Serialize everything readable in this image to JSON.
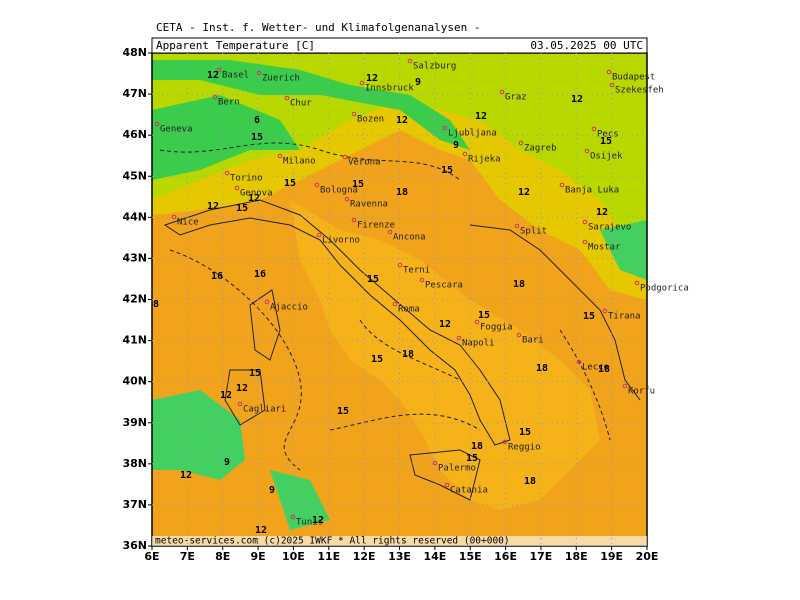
{
  "header": "CETA - Inst. f. Wetter- und Klimafolgenanalysen -",
  "panel": {
    "title": "Apparent Temperature [C]",
    "date": "03.05.2025 00 UTC"
  },
  "footer": "meteo-services.com   (c)2025 IWKF * All rights reserved (00+000)",
  "axes": {
    "lon_labels": [
      "6E",
      "7E",
      "8E",
      "9E",
      "10E",
      "11E",
      "12E",
      "13E",
      "14E",
      "15E",
      "16E",
      "17E",
      "18E",
      "19E",
      "20E"
    ],
    "lat_labels": [
      "48N",
      "47N",
      "46N",
      "45N",
      "44N",
      "43N",
      "42N",
      "41N",
      "40N",
      "39N",
      "38N",
      "37N",
      "36N"
    ]
  },
  "cities": [
    "Basel",
    "Zuerich",
    "Innsbruck",
    "Salzburg",
    "Graz",
    "Budapest",
    "Szekesfeh",
    "Bern",
    "Chur",
    "Bozen",
    "Ljubljana",
    "Zagreb",
    "Pecs",
    "Geneva",
    "Milano",
    "Verona",
    "Rijeka",
    "Osijek",
    "Torino",
    "Bologna",
    "Banja Luka",
    "Genova",
    "Ravenna",
    "Nice",
    "Firenze",
    "Ancona",
    "Split",
    "Sarajevo",
    "Livorno",
    "Mostar",
    "Podgorica",
    "Terni",
    "Pescara",
    "Ajaccio",
    "Roma",
    "Tirana",
    "Foggia",
    "Bari",
    "Napoli",
    "Lecce",
    "Korfu",
    "Cagliari",
    "Palermo",
    "Reggio",
    "Catania",
    "Tunis"
  ],
  "contour_labels": [
    12,
    12,
    9,
    6,
    15,
    12,
    9,
    12,
    12,
    15,
    15,
    15,
    15,
    18,
    12,
    12,
    15,
    12,
    12,
    16,
    16,
    8,
    15,
    18,
    12,
    15,
    15,
    18,
    15,
    18,
    18,
    15,
    12,
    12,
    15,
    15,
    18,
    15,
    9,
    12,
    9,
    12,
    18,
    12
  ]
}
